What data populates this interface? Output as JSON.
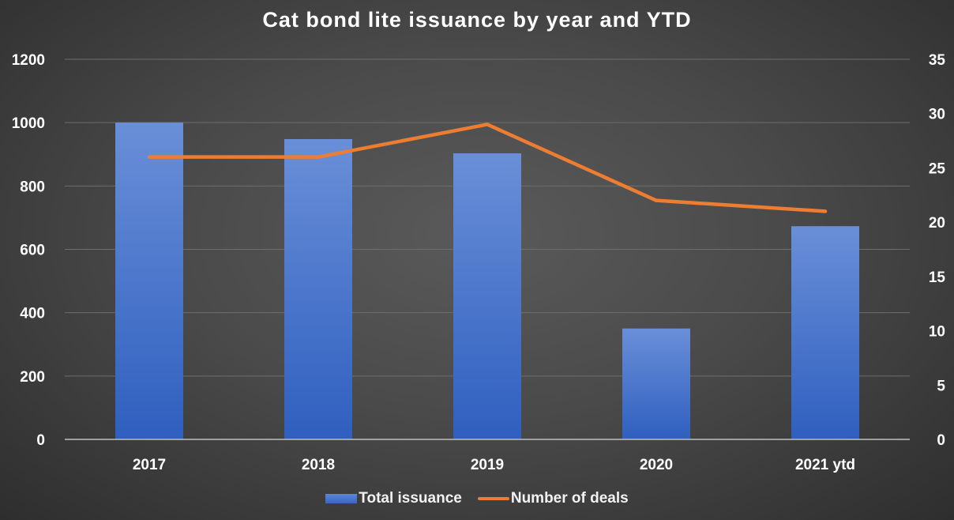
{
  "chart_data": {
    "type": "bar",
    "title": "Cat bond lite issuance by year and YTD",
    "categories": [
      "2017",
      "2018",
      "2019",
      "2020",
      "2021 ytd"
    ],
    "series": [
      {
        "name": "Total issuance",
        "type": "bar",
        "axis": "left",
        "color": "#4472c4",
        "values": [
          1000,
          948,
          903,
          350,
          673
        ]
      },
      {
        "name": "Number of deals",
        "type": "line",
        "axis": "right",
        "color": "#ed7d31",
        "values": [
          26,
          26,
          29,
          22,
          21
        ]
      }
    ],
    "y_left": {
      "min": 0,
      "max": 1200,
      "ticks": [
        "0",
        "200",
        "400",
        "600",
        "800",
        "1000",
        "1200"
      ]
    },
    "y_right": {
      "min": 0,
      "max": 35,
      "ticks": [
        "0",
        "5",
        "10",
        "15",
        "20",
        "25",
        "30",
        "35"
      ]
    },
    "xlabel": "",
    "ylabel": "",
    "grid": true,
    "legend_position": "bottom"
  },
  "legend": {
    "bar_label": "Total issuance",
    "line_label": "Number of deals"
  }
}
